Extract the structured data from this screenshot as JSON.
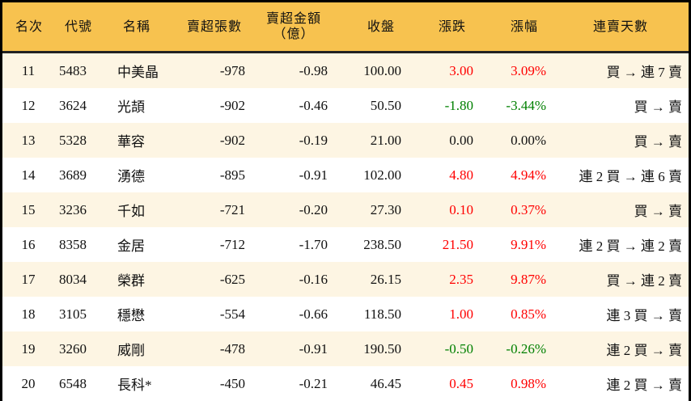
{
  "colors": {
    "header_bg": "#F7C24F",
    "row_alt": "#FDF5E3",
    "up": "#FF0000",
    "down": "#008000"
  },
  "headers": [
    "名次",
    "代號",
    "名稱",
    "賣超張數",
    "賣超金額\n（億）",
    "收盤",
    "漲跌",
    "漲幅",
    "連賣天數"
  ],
  "rows": [
    {
      "rank": "11",
      "code": "5483",
      "name": "中美晶",
      "volume": "-978",
      "amount": "-0.98",
      "close": "100.00",
      "change": "3.00",
      "pct": "3.09%",
      "dir": "up",
      "streak": "買 → 連 7 賣"
    },
    {
      "rank": "12",
      "code": "3624",
      "name": "光頡",
      "volume": "-902",
      "amount": "-0.46",
      "close": "50.50",
      "change": "-1.80",
      "pct": "-3.44%",
      "dir": "down",
      "streak": "買 → 賣"
    },
    {
      "rank": "13",
      "code": "5328",
      "name": "華容",
      "volume": "-902",
      "amount": "-0.19",
      "close": "21.00",
      "change": "0.00",
      "pct": "0.00%",
      "dir": "flat",
      "streak": "買 → 賣"
    },
    {
      "rank": "14",
      "code": "3689",
      "name": "湧德",
      "volume": "-895",
      "amount": "-0.91",
      "close": "102.00",
      "change": "4.80",
      "pct": "4.94%",
      "dir": "up",
      "streak": "連 2 買 → 連 6 賣"
    },
    {
      "rank": "15",
      "code": "3236",
      "name": "千如",
      "volume": "-721",
      "amount": "-0.20",
      "close": "27.30",
      "change": "0.10",
      "pct": "0.37%",
      "dir": "up",
      "streak": "買 → 賣"
    },
    {
      "rank": "16",
      "code": "8358",
      "name": "金居",
      "volume": "-712",
      "amount": "-1.70",
      "close": "238.50",
      "change": "21.50",
      "pct": "9.91%",
      "dir": "up",
      "streak": "連 2 買 → 連 2 賣"
    },
    {
      "rank": "17",
      "code": "8034",
      "name": "榮群",
      "volume": "-625",
      "amount": "-0.16",
      "close": "26.15",
      "change": "2.35",
      "pct": "9.87%",
      "dir": "up",
      "streak": "買 → 連 2 賣"
    },
    {
      "rank": "18",
      "code": "3105",
      "name": "穩懋",
      "volume": "-554",
      "amount": "-0.66",
      "close": "118.50",
      "change": "1.00",
      "pct": "0.85%",
      "dir": "up",
      "streak": "連 3 買 → 賣"
    },
    {
      "rank": "19",
      "code": "3260",
      "name": "威剛",
      "volume": "-478",
      "amount": "-0.91",
      "close": "190.50",
      "change": "-0.50",
      "pct": "-0.26%",
      "dir": "down",
      "streak": "連 2 買 → 賣"
    },
    {
      "rank": "20",
      "code": "6548",
      "name": "長科*",
      "volume": "-450",
      "amount": "-0.21",
      "close": "46.45",
      "change": "0.45",
      "pct": "0.98%",
      "dir": "up",
      "streak": "連 2 買 → 賣"
    }
  ]
}
